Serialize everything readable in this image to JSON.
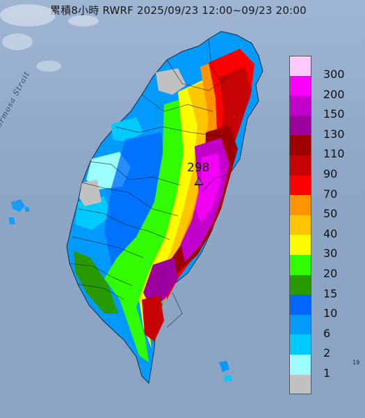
{
  "title": "累積8小時 RWRF 2025/09/23 12:00~09/23 20:00",
  "strait_label": "Formosa Strait",
  "peak": {
    "value": "298",
    "icon": "triangle-icon"
  },
  "corner_note": "19",
  "legend": [
    {
      "label": "300",
      "color": "#fec9fe"
    },
    {
      "label": "200",
      "color": "#fd00fd"
    },
    {
      "label": "150",
      "color": "#c300cb"
    },
    {
      "label": "130",
      "color": "#9d009f"
    },
    {
      "label": "110",
      "color": "#9c0100"
    },
    {
      "label": "90",
      "color": "#c50302"
    },
    {
      "label": "70",
      "color": "#fe0000"
    },
    {
      "label": "50",
      "color": "#fd9400"
    },
    {
      "label": "40",
      "color": "#fdc600"
    },
    {
      "label": "30",
      "color": "#fefd00"
    },
    {
      "label": "20",
      "color": "#32fd00"
    },
    {
      "label": "15",
      "color": "#289a00"
    },
    {
      "label": "10",
      "color": "#0066fe"
    },
    {
      "label": "6",
      "color": "#029bfd"
    },
    {
      "label": "2",
      "color": "#01cafe"
    },
    {
      "label": "1",
      "color": "#9cfefe"
    },
    {
      "label": "",
      "color": "#c1c1c1"
    }
  ]
}
